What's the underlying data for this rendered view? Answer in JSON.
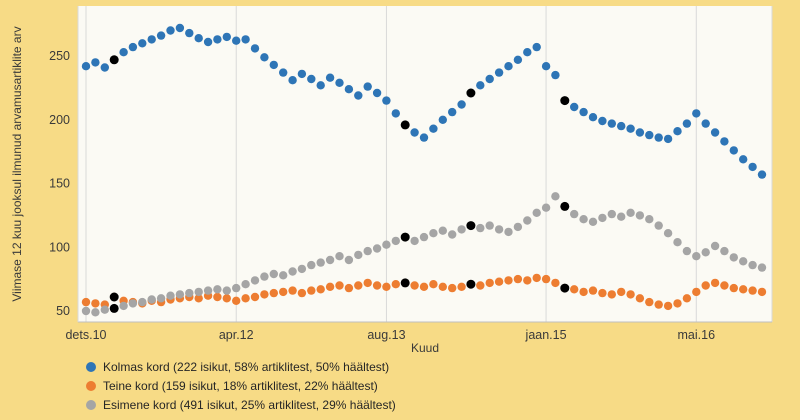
{
  "chart_data": {
    "type": "scatter",
    "x_axis": {
      "label": "Kuud",
      "ticks": [
        {
          "label": "dets.10",
          "index": 0
        },
        {
          "label": "apr.12",
          "index": 16
        },
        {
          "label": "aug.13",
          "index": 32
        },
        {
          "label": "jaan.15",
          "index": 49
        },
        {
          "label": "mai.16",
          "index": 65
        }
      ]
    },
    "y_axis": {
      "label": "Viimase 12 kuu jooksul ilmunud arvamusartiklite arv",
      "ticks": [
        50,
        100,
        150,
        200,
        250
      ],
      "range": [
        40,
        287
      ]
    },
    "series": [
      {
        "name": "Kolmas kord (222 isikut, 58% artiklitest, 50% häältest)",
        "color": "#2E75B6",
        "values": [
          242,
          245,
          241,
          247,
          253,
          257,
          260,
          263,
          266,
          270,
          272,
          268,
          264,
          261,
          263,
          265,
          262,
          263,
          256,
          249,
          243,
          237,
          231,
          236,
          232,
          227,
          233,
          229,
          224,
          219,
          226,
          221,
          215,
          205,
          196,
          190,
          186,
          193,
          200,
          206,
          212,
          221,
          227,
          232,
          237,
          242,
          247,
          253,
          257,
          242,
          235,
          215,
          210,
          206,
          202,
          199,
          197,
          195,
          193,
          190,
          188,
          186,
          185,
          191,
          197,
          205,
          197,
          190,
          183,
          176,
          169,
          163,
          157
        ]
      },
      {
        "name": "Teine kord (159 isikut, 18% artiklitest, 22% häältest)",
        "color": "#ED7D31",
        "values": [
          57,
          56,
          55,
          61,
          58,
          57,
          56,
          58,
          57,
          59,
          60,
          61,
          60,
          62,
          61,
          60,
          58,
          60,
          61,
          63,
          64,
          65,
          66,
          64,
          66,
          67,
          69,
          70,
          68,
          70,
          72,
          70,
          69,
          71,
          72,
          70,
          69,
          71,
          69,
          68,
          69,
          71,
          70,
          72,
          73,
          74,
          75,
          74,
          76,
          75,
          72,
          68,
          67,
          65,
          66,
          64,
          63,
          65,
          63,
          60,
          57,
          55,
          54,
          56,
          60,
          65,
          70,
          72,
          70,
          68,
          67,
          66,
          65
        ]
      },
      {
        "name": "Esimene kord (491 isikut, 25% artiklitest, 29% häältest)",
        "color": "#A5A5A5",
        "values": [
          50,
          49,
          51,
          52,
          54,
          56,
          57,
          59,
          60,
          62,
          63,
          64,
          65,
          66,
          67,
          66,
          68,
          71,
          74,
          77,
          79,
          78,
          81,
          83,
          86,
          88,
          90,
          93,
          90,
          94,
          97,
          99,
          102,
          105,
          108,
          105,
          108,
          111,
          113,
          110,
          114,
          117,
          115,
          117,
          114,
          112,
          116,
          121,
          127,
          131,
          140,
          132,
          126,
          122,
          120,
          123,
          126,
          124,
          127,
          125,
          122,
          117,
          111,
          104,
          97,
          93,
          96,
          101,
          97,
          92,
          89,
          86,
          84
        ]
      }
    ],
    "highlight_markers": {
      "color": "#000000",
      "indices": [
        3,
        34,
        41,
        51
      ]
    },
    "layout": {
      "background": "#F7DB86",
      "plot_background": "#FBFAF4",
      "gridline_color": "#D9D9D9",
      "axis_color": "#BFBFBF",
      "text_color": "#3A3A3A",
      "grid": "vertical-only",
      "legend_position": "bottom-left"
    }
  }
}
